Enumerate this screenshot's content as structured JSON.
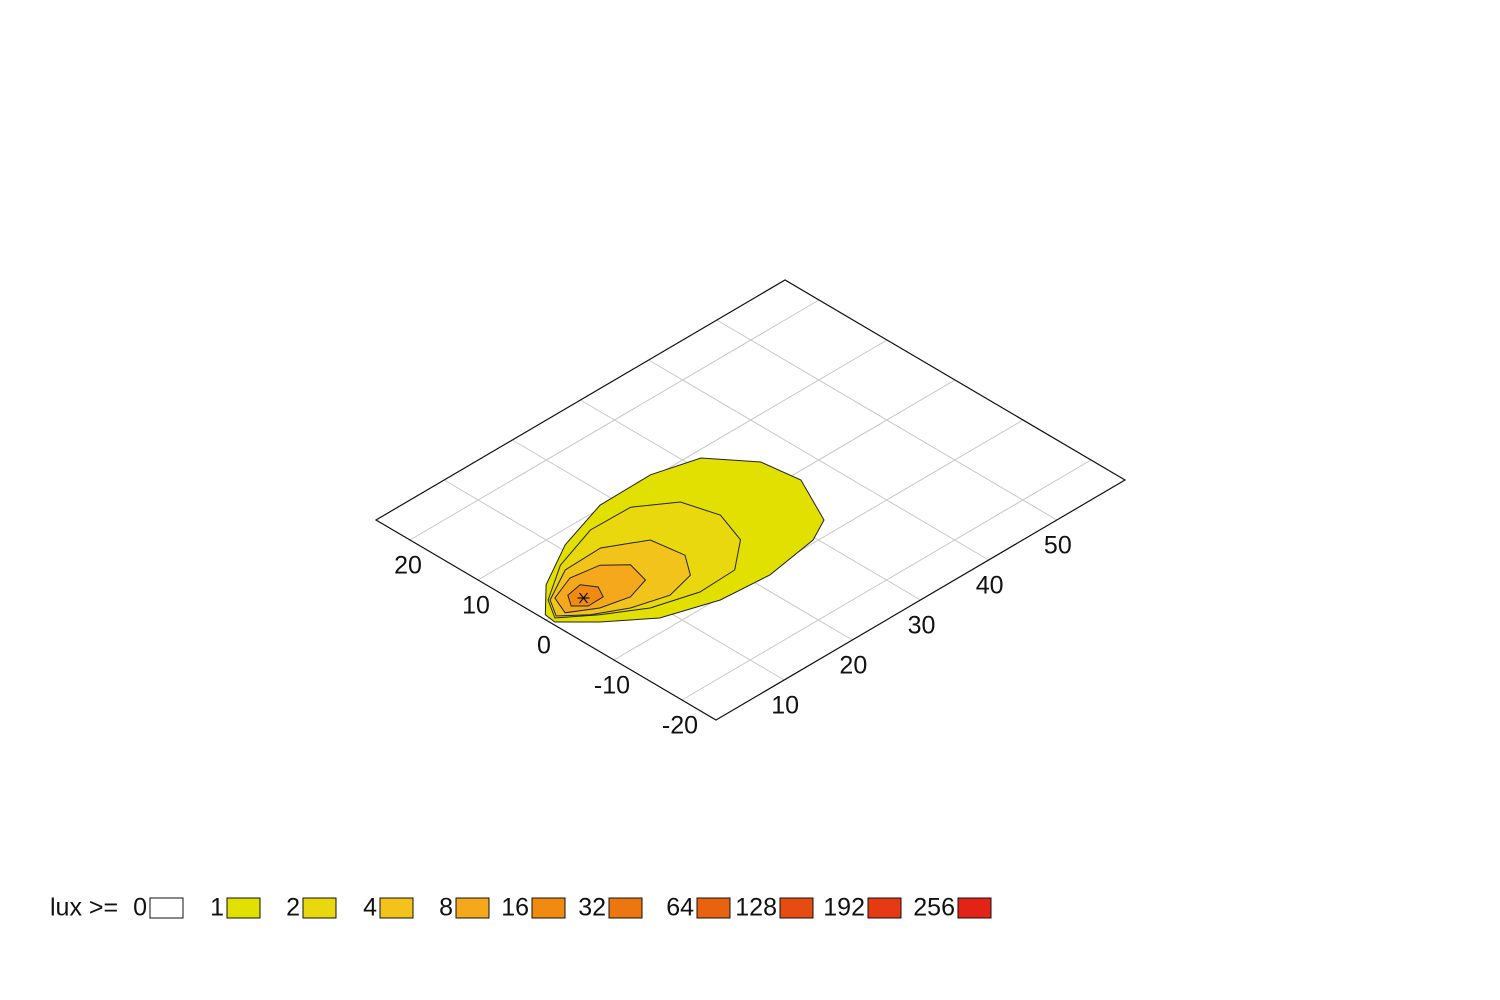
{
  "chart_data": {
    "type": "isolux",
    "xlim": [
      0,
      60
    ],
    "xticks": [
      10,
      20,
      30,
      40,
      50
    ],
    "ylim": [
      -25,
      25
    ],
    "yticks": [
      -20,
      -10,
      0,
      10,
      20
    ],
    "grid": true,
    "legend_title": "lux >=",
    "levels": [
      0,
      1,
      2,
      4,
      8,
      16,
      32,
      64,
      128,
      192,
      256
    ],
    "colors": [
      "#ffffff",
      "#e2e000",
      "#e9d80e",
      "#f2c31a",
      "#f5a81c",
      "#f08a10",
      "#ec7610",
      "#e86210",
      "#e64c12",
      "#e63a14",
      "#e42318"
    ],
    "contours": [
      {
        "level": 1,
        "x": [
          0.6,
          4.4,
          10.8,
          18.3,
          25.8,
          31.6,
          35.5,
          36.2,
          32.9,
          29.6,
          22.1,
          15.3,
          8.6,
          3.7,
          0.4
        ],
        "y": [
          0.7,
          4.4,
          8,
          10.4,
          10.5,
          8.9,
          4,
          -1.2,
          -7.9,
          -9.6,
          -10.8,
          -10.3,
          -8.1,
          -4.2,
          -0.9
        ]
      },
      {
        "level": 2,
        "x": [
          2.65,
          7.9,
          14.5,
          20.3,
          24.6,
          25.9,
          24.3,
          20.1,
          14.8,
          9.15,
          4.6,
          0.9
        ],
        "y": [
          2.35,
          5.8,
          8,
          7.9,
          4.9,
          0.3,
          -4.25,
          -7.6,
          -7.8,
          -6.15,
          -3.3,
          -0.4
        ]
      },
      {
        "level": 4,
        "x": [
          2.8,
          7.65,
          13,
          17.65,
          18.3,
          16.2,
          12.2,
          7.7,
          3.9,
          1.25
        ],
        "y": [
          2.2,
          4.85,
          5,
          2.35,
          -2.1,
          -5,
          -6,
          -4.7,
          -2.6,
          -0.25
        ]
      },
      {
        "level": 8,
        "x": [
          3.4,
          7,
          10.8,
          13.1,
          12.3,
          9.1,
          5.45,
          2.3
        ],
        "y": [
          2.1,
          3.5,
          2.9,
          0.7,
          -2.3,
          -3.3,
          -2.45,
          -0.5
        ]
      },
      {
        "level": 16,
        "x": [
          4.7,
          6.9,
          7.95,
          7.1,
          4.85,
          3.6
        ],
        "y": [
          1.5,
          1.9,
          0.3,
          -1.3,
          -1.35,
          -0.1
        ]
      }
    ],
    "luminaire": {
      "x": 5.5,
      "y": 0
    }
  }
}
